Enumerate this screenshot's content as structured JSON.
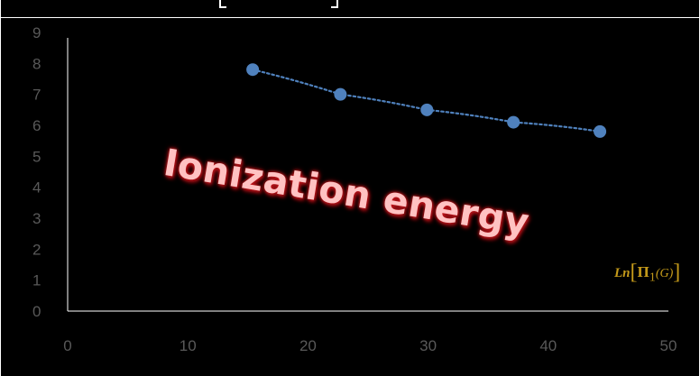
{
  "chart_data": {
    "type": "scatter",
    "trendline": "dotted",
    "x": [
      15.4,
      22.7,
      29.9,
      37.1,
      44.3
    ],
    "y": [
      7.8,
      7.0,
      6.5,
      6.1,
      5.8
    ],
    "xlim": [
      0,
      50
    ],
    "ylim": [
      0,
      9
    ],
    "x_ticks": [
      "0",
      "10",
      "20",
      "30",
      "40",
      "50"
    ],
    "y_ticks": [
      "0",
      "1",
      "2",
      "3",
      "4",
      "5",
      "6",
      "7",
      "8",
      "9"
    ],
    "series": [
      {
        "label": "Ionization energy"
      }
    ],
    "xlabel": {
      "ln": "Ln",
      "bracket_open": "[",
      "pi": "Π",
      "pi_sub": "1",
      "arg": "(G)",
      "bracket_close": "]"
    },
    "grid": false,
    "colors": {
      "marker": "#4f81bd",
      "trendline": "#4f81bd",
      "label": "#ffc2c2",
      "label_glow": "#c4161c",
      "xlabel": "#c49a1a",
      "ticks": "#595959"
    }
  }
}
